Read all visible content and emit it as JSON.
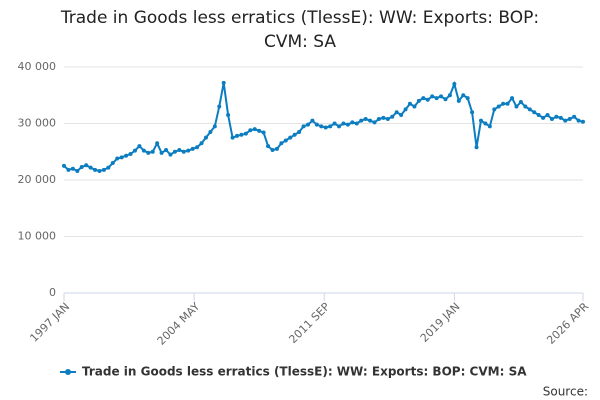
{
  "chart_data": {
    "type": "line",
    "title": "Trade in Goods less erratics (TlessE): WW: Exports: BOP: CVM: SA",
    "source": "Source:",
    "x": [
      1997,
      1997.25,
      1997.5,
      1997.75,
      1998,
      1998.25,
      1998.5,
      1998.75,
      1999,
      1999.25,
      1999.5,
      1999.75,
      2000,
      2000.25,
      2000.5,
      2000.75,
      2001,
      2001.25,
      2001.5,
      2001.75,
      2002,
      2002.25,
      2002.5,
      2002.75,
      2003,
      2003.25,
      2003.5,
      2003.75,
      2004,
      2004.25,
      2004.5,
      2004.75,
      2005,
      2005.25,
      2005.5,
      2005.75,
      2006,
      2006.25,
      2006.5,
      2006.75,
      2007,
      2007.25,
      2007.5,
      2007.75,
      2008,
      2008.25,
      2008.5,
      2008.75,
      2009,
      2009.25,
      2009.5,
      2009.75,
      2010,
      2010.25,
      2010.5,
      2010.75,
      2011,
      2011.25,
      2011.5,
      2011.75,
      2012,
      2012.25,
      2012.5,
      2012.75,
      2013,
      2013.25,
      2013.5,
      2013.75,
      2014,
      2014.25,
      2014.5,
      2014.75,
      2015,
      2015.25,
      2015.5,
      2015.75,
      2016,
      2016.25,
      2016.5,
      2016.75,
      2017,
      2017.25,
      2017.5,
      2017.75,
      2018,
      2018.25,
      2018.5,
      2018.75,
      2019,
      2019.25,
      2019.5,
      2019.75,
      2020,
      2020.25,
      2020.5,
      2020.75,
      2021,
      2021.25,
      2021.5,
      2021.75,
      2022,
      2022.25,
      2022.5,
      2022.75,
      2023,
      2023.25,
      2023.5,
      2023.75,
      2024,
      2024.25,
      2024.5,
      2024.75,
      2025,
      2025.25,
      2025.5,
      2025.75,
      2026,
      2026.25
    ],
    "series": [
      {
        "name": "Trade in Goods less erratics (TlessE): WW: Exports: BOP: CVM: SA",
        "color": "#0b7dc0",
        "values": [
          22500,
          21800,
          22000,
          21600,
          22300,
          22600,
          22200,
          21800,
          21600,
          21800,
          22200,
          23000,
          23800,
          24000,
          24300,
          24600,
          25200,
          26000,
          25200,
          24800,
          25000,
          26500,
          24800,
          25300,
          24500,
          25000,
          25300,
          25000,
          25200,
          25500,
          25800,
          26500,
          27500,
          28500,
          29500,
          33000,
          37200,
          31500,
          27500,
          27800,
          28000,
          28200,
          28800,
          29000,
          28700,
          28400,
          26000,
          25300,
          25500,
          26500,
          27000,
          27500,
          28000,
          28500,
          29500,
          29800,
          30500,
          29800,
          29500,
          29300,
          29500,
          30000,
          29500,
          30000,
          29800,
          30200,
          30000,
          30500,
          30800,
          30500,
          30200,
          30800,
          31000,
          30800,
          31200,
          32000,
          31500,
          32500,
          33500,
          33000,
          34000,
          34500,
          34200,
          34800,
          34500,
          34800,
          34300,
          35000,
          37000,
          34000,
          35000,
          34500,
          32000,
          25800,
          30500,
          30000,
          29500,
          32500,
          33000,
          33500,
          33500,
          34500,
          33000,
          33800,
          33000,
          32500,
          32000,
          31500,
          31000,
          31500,
          30800,
          31200,
          31000,
          30500,
          30800,
          31200,
          30500,
          30300
        ]
      }
    ],
    "xlim": [
      1997,
      2026.25
    ],
    "xticks": [
      {
        "value": 1997,
        "label": "1997 JAN"
      },
      {
        "value": 2004.333,
        "label": "2004 MAY"
      },
      {
        "value": 2011.667,
        "label": "2011 SEP"
      },
      {
        "value": 2019,
        "label": "2019 JAN"
      },
      {
        "value": 2026.25,
        "label": "2026 APR"
      }
    ],
    "ylim": [
      0,
      40000
    ],
    "yticks": [
      0,
      {
        "value": 10000,
        "label": "10 000"
      },
      {
        "value": 20000,
        "label": "20 000"
      },
      {
        "value": 30000,
        "label": "30 000"
      },
      {
        "value": 40000,
        "label": "40 000"
      }
    ],
    "grid": true
  }
}
